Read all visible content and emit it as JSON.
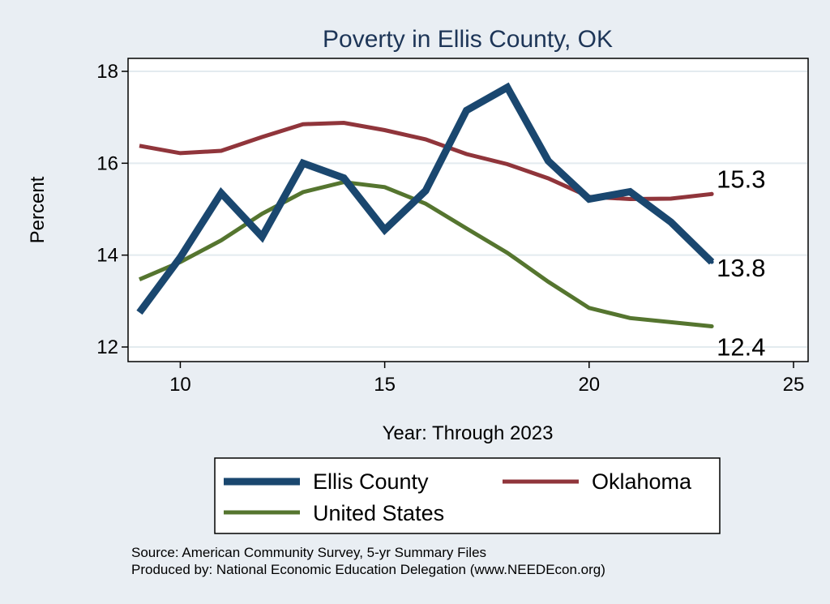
{
  "chart_data": {
    "type": "line",
    "title": "Poverty in Ellis County, OK",
    "xlabel": "Year: Through 2023",
    "ylabel": "Percent",
    "xlim": [
      9,
      25
    ],
    "ylim": [
      12,
      18
    ],
    "xticks": [
      10,
      15,
      20,
      25
    ],
    "yticks": [
      12,
      14,
      16,
      18
    ],
    "grid": "horizontal",
    "x": [
      9,
      10,
      11,
      12,
      13,
      14,
      15,
      16,
      17,
      18,
      19,
      20,
      21,
      22,
      23
    ],
    "series": [
      {
        "name": "Ellis County",
        "color": "#1a476f",
        "values": [
          12.75,
          13.95,
          15.35,
          14.4,
          16.0,
          15.68,
          14.55,
          15.4,
          17.15,
          17.65,
          16.05,
          15.22,
          15.38,
          14.72,
          13.85
        ],
        "end_label": "13.8"
      },
      {
        "name": "Oklahoma",
        "color": "#90353b",
        "values": [
          16.38,
          16.22,
          16.27,
          16.57,
          16.85,
          16.88,
          16.72,
          16.52,
          16.2,
          15.98,
          15.67,
          15.27,
          15.22,
          15.23,
          15.33
        ],
        "end_label": "15.3"
      },
      {
        "name": "United States",
        "color": "#55752f",
        "values": [
          13.47,
          13.85,
          14.32,
          14.9,
          15.37,
          15.59,
          15.48,
          15.12,
          14.58,
          14.05,
          13.42,
          12.85,
          12.63,
          12.54,
          12.45
        ],
        "end_label": "12.4"
      }
    ],
    "legend": {
      "position": "bottom",
      "entries": [
        "Ellis County",
        "Oklahoma",
        "United States"
      ]
    },
    "notes": [
      "Source: American Community Survey, 5-yr Summary Files",
      "Produced by: National Economic Education Delegation (www.NEEDEcon.org)"
    ]
  }
}
